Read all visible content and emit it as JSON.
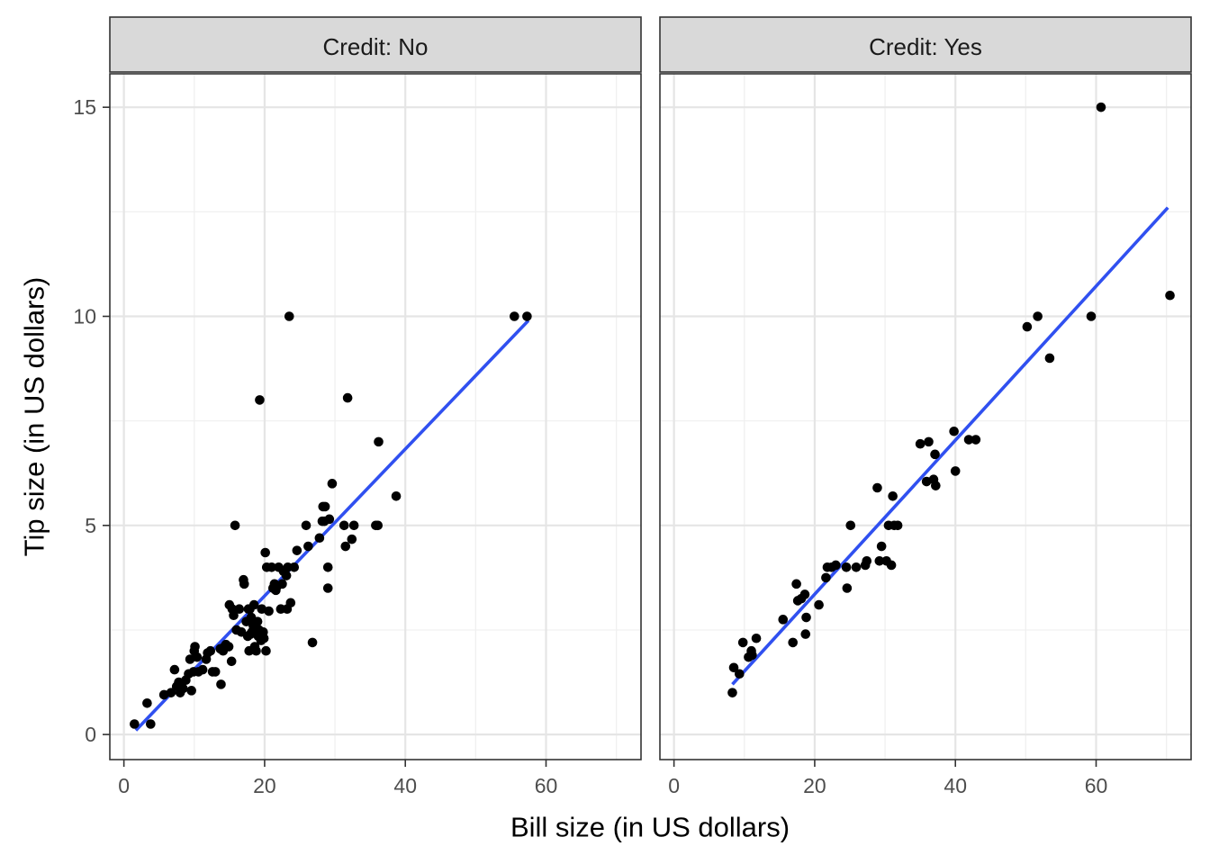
{
  "chart_data": {
    "type": "scatter",
    "xlabel": "Bill size (in US dollars)",
    "ylabel": "Tip size (in US dollars)",
    "xlim": [
      -2,
      73.5
    ],
    "ylim": [
      -0.6,
      15.8
    ],
    "xticks": [
      0,
      20,
      40,
      60
    ],
    "yticks": [
      0,
      5,
      10,
      15
    ],
    "grid": true,
    "colors": {
      "points": "#000000",
      "fit_line": "#3050f0",
      "strip_bg": "#d9d9d9"
    },
    "panels": [
      {
        "strip_label": "Credit: No",
        "fit_line": {
          "x": [
            1.7,
            57.5
          ],
          "y": [
            0.1,
            9.9
          ]
        },
        "points": [
          [
            1.5,
            0.25
          ],
          [
            3.3,
            0.75
          ],
          [
            3.8,
            0.25
          ],
          [
            5.7,
            0.95
          ],
          [
            6.7,
            1.0
          ],
          [
            7.2,
            1.55
          ],
          [
            7.5,
            1.15
          ],
          [
            7.8,
            1.25
          ],
          [
            8.0,
            1.0
          ],
          [
            8.4,
            1.1
          ],
          [
            8.8,
            1.3
          ],
          [
            9.2,
            1.45
          ],
          [
            9.4,
            1.8
          ],
          [
            9.6,
            1.05
          ],
          [
            9.9,
            1.5
          ],
          [
            10.0,
            2.0
          ],
          [
            10.1,
            2.1
          ],
          [
            10.4,
            1.85
          ],
          [
            10.6,
            1.5
          ],
          [
            11.2,
            1.55
          ],
          [
            11.7,
            1.8
          ],
          [
            11.9,
            1.95
          ],
          [
            12.3,
            2.0
          ],
          [
            12.6,
            1.5
          ],
          [
            13.0,
            1.5
          ],
          [
            13.7,
            2.05
          ],
          [
            13.8,
            1.2
          ],
          [
            14.1,
            2.0
          ],
          [
            14.3,
            2.1
          ],
          [
            14.5,
            2.15
          ],
          [
            14.9,
            2.1
          ],
          [
            15.0,
            3.1
          ],
          [
            15.3,
            1.75
          ],
          [
            15.4,
            3.0
          ],
          [
            15.6,
            2.85
          ],
          [
            15.8,
            5.0
          ],
          [
            16.0,
            2.5
          ],
          [
            16.4,
            3.0
          ],
          [
            16.7,
            2.45
          ],
          [
            17.0,
            3.7
          ],
          [
            17.1,
            3.6
          ],
          [
            17.4,
            2.7
          ],
          [
            17.6,
            2.35
          ],
          [
            17.7,
            3.0
          ],
          [
            17.8,
            2.0
          ],
          [
            17.9,
            3.0
          ],
          [
            18.0,
            2.4
          ],
          [
            18.1,
            2.8
          ],
          [
            18.2,
            2.45
          ],
          [
            18.4,
            2.6
          ],
          [
            18.5,
            3.1
          ],
          [
            18.6,
            2.1
          ],
          [
            18.8,
            2.0
          ],
          [
            19.0,
            2.7
          ],
          [
            19.1,
            2.35
          ],
          [
            19.2,
            2.5
          ],
          [
            19.3,
            8.0
          ],
          [
            19.4,
            2.3
          ],
          [
            19.5,
            2.25
          ],
          [
            19.6,
            3.0
          ],
          [
            19.8,
            2.45
          ],
          [
            19.9,
            2.3
          ],
          [
            20.1,
            4.35
          ],
          [
            20.2,
            2.0
          ],
          [
            20.3,
            4.0
          ],
          [
            20.6,
            2.95
          ],
          [
            21.0,
            4.0
          ],
          [
            21.2,
            3.5
          ],
          [
            21.4,
            3.6
          ],
          [
            21.6,
            3.45
          ],
          [
            21.8,
            3.55
          ],
          [
            22.0,
            4.0
          ],
          [
            22.3,
            3.0
          ],
          [
            22.5,
            3.6
          ],
          [
            22.7,
            3.9
          ],
          [
            23.1,
            3.8
          ],
          [
            23.2,
            3.0
          ],
          [
            23.3,
            4.0
          ],
          [
            23.5,
            10.0
          ],
          [
            23.7,
            3.15
          ],
          [
            24.2,
            4.0
          ],
          [
            24.6,
            4.4
          ],
          [
            25.9,
            5.0
          ],
          [
            26.2,
            4.5
          ],
          [
            26.8,
            2.2
          ],
          [
            27.8,
            4.7
          ],
          [
            28.2,
            5.1
          ],
          [
            28.3,
            5.45
          ],
          [
            28.5,
            5.1
          ],
          [
            28.6,
            5.45
          ],
          [
            29.0,
            3.5
          ],
          [
            29.0,
            4.0
          ],
          [
            29.2,
            5.15
          ],
          [
            29.6,
            6.0
          ],
          [
            31.3,
            5.0
          ],
          [
            31.5,
            4.5
          ],
          [
            31.8,
            8.05
          ],
          [
            32.4,
            4.67
          ],
          [
            32.7,
            5.0
          ],
          [
            35.8,
            5.0
          ],
          [
            36.1,
            5.0
          ],
          [
            36.2,
            7.0
          ],
          [
            38.7,
            5.7
          ],
          [
            55.5,
            10.0
          ],
          [
            57.3,
            10.0
          ]
        ]
      },
      {
        "strip_label": "Credit: Yes",
        "fit_line": {
          "x": [
            8.3,
            70.2
          ],
          "y": [
            1.2,
            12.6
          ]
        },
        "points": [
          [
            8.3,
            1.0
          ],
          [
            8.5,
            1.6
          ],
          [
            9.3,
            1.45
          ],
          [
            9.8,
            2.2
          ],
          [
            10.6,
            1.85
          ],
          [
            11.0,
            2.0
          ],
          [
            11.1,
            1.9
          ],
          [
            11.7,
            2.3
          ],
          [
            15.5,
            2.75
          ],
          [
            16.9,
            2.2
          ],
          [
            17.4,
            3.6
          ],
          [
            17.6,
            3.2
          ],
          [
            18.1,
            3.25
          ],
          [
            18.6,
            3.35
          ],
          [
            18.7,
            2.4
          ],
          [
            18.8,
            2.8
          ],
          [
            20.6,
            3.1
          ],
          [
            21.6,
            3.75
          ],
          [
            21.8,
            4.0
          ],
          [
            22.4,
            4.0
          ],
          [
            23.0,
            4.05
          ],
          [
            24.5,
            4.0
          ],
          [
            24.6,
            3.5
          ],
          [
            25.1,
            5.0
          ],
          [
            25.9,
            4.0
          ],
          [
            27.2,
            4.05
          ],
          [
            27.4,
            4.15
          ],
          [
            28.9,
            5.9
          ],
          [
            29.2,
            4.15
          ],
          [
            29.5,
            4.5
          ],
          [
            30.2,
            4.15
          ],
          [
            30.5,
            5.0
          ],
          [
            30.9,
            4.05
          ],
          [
            31.1,
            5.7
          ],
          [
            31.3,
            5.0
          ],
          [
            31.8,
            5.0
          ],
          [
            35.0,
            6.95
          ],
          [
            35.9,
            6.05
          ],
          [
            36.2,
            7.0
          ],
          [
            36.9,
            6.1
          ],
          [
            37.1,
            6.7
          ],
          [
            37.2,
            5.95
          ],
          [
            39.8,
            7.25
          ],
          [
            40.0,
            6.3
          ],
          [
            41.9,
            7.05
          ],
          [
            42.9,
            7.05
          ],
          [
            50.2,
            9.75
          ],
          [
            51.7,
            10.0
          ],
          [
            53.4,
            9.0
          ],
          [
            59.3,
            10.0
          ],
          [
            60.7,
            15.0
          ],
          [
            70.5,
            10.5
          ]
        ]
      }
    ]
  }
}
